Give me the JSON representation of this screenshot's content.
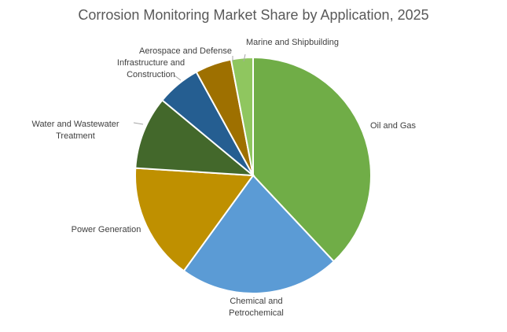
{
  "chart_data": {
    "type": "pie",
    "title": "Corrosion Monitoring Market Share by Application, 2025",
    "categories": [
      "Oil and Gas",
      "Chemical and Petrochemical",
      "Power Generation",
      "Water and Wastewater Treatment",
      "Infrastructure and Construction",
      "Aerospace and Defense",
      "Marine and Shipbuilding"
    ],
    "label_lines": [
      [
        "Oil and Gas"
      ],
      [
        "Chemical and",
        "Petrochemical"
      ],
      [
        "Power Generation"
      ],
      [
        "Water and Wastewater",
        "Treatment"
      ],
      [
        "Infrastructure and",
        "Construction"
      ],
      [
        "Aerospace and Defense"
      ],
      [
        "Marine and Shipbuilding"
      ]
    ],
    "values": [
      38,
      22,
      16,
      10,
      6,
      5,
      3
    ],
    "unit": "%",
    "colors": [
      "#70ad47",
      "#5b9bd5",
      "#bf9000",
      "#43682b",
      "#255e91",
      "#9e7000",
      "#8fc65f"
    ],
    "legend": "none",
    "data_labels": "category name"
  }
}
